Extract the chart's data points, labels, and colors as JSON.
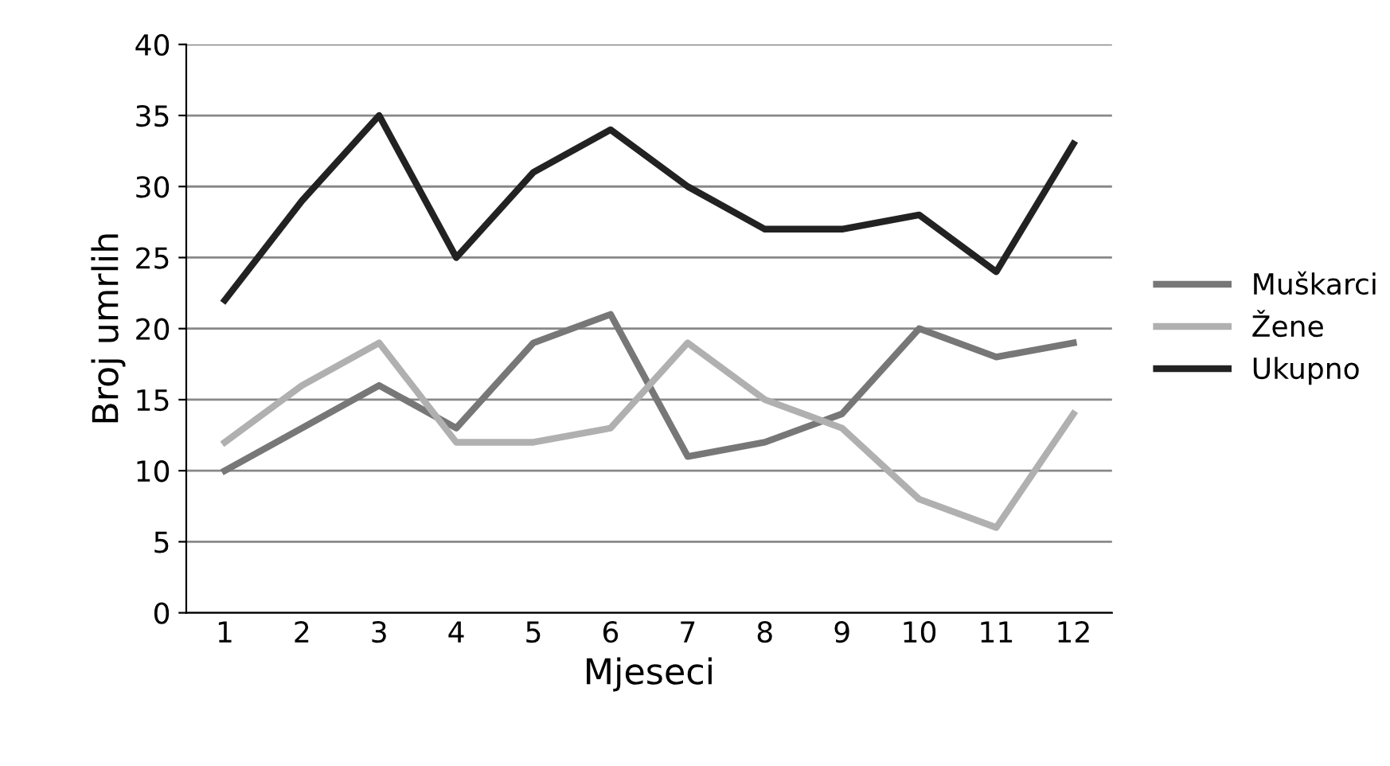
{
  "chart_data": {
    "type": "line",
    "xlabel": "Mjeseci",
    "ylabel": "Broj umrlih",
    "categories": [
      "1",
      "2",
      "3",
      "4",
      "5",
      "6",
      "7",
      "8",
      "9",
      "10",
      "11",
      "12"
    ],
    "series": [
      {
        "name": "Muškarci",
        "color": "#777777",
        "values": [
          10,
          13,
          16,
          13,
          19,
          21,
          11,
          12,
          14,
          20,
          18,
          19
        ]
      },
      {
        "name": "Žene",
        "color": "#b0b0b0",
        "values": [
          12,
          16,
          19,
          12,
          12,
          13,
          19,
          15,
          13,
          8,
          6,
          14
        ]
      },
      {
        "name": "Ukupno",
        "color": "#222222",
        "values": [
          22,
          29,
          35,
          25,
          31,
          34,
          30,
          27,
          27,
          28,
          24,
          33
        ]
      }
    ],
    "ylim": [
      0,
      40
    ],
    "yticks": [
      0,
      5,
      10,
      15,
      20,
      25,
      30,
      35,
      40
    ],
    "grid": "y",
    "legend": "right",
    "marker": "none",
    "line_style": "solid"
  }
}
